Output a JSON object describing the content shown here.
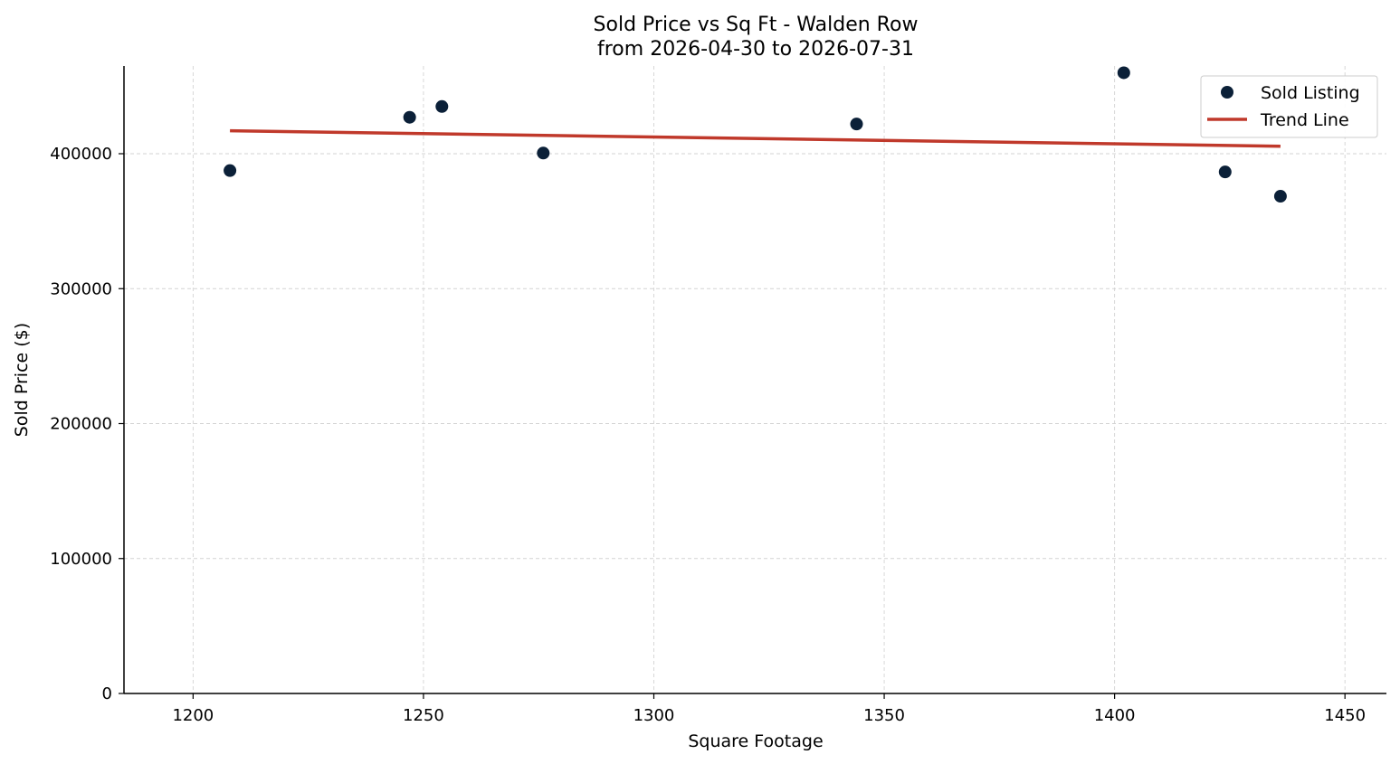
{
  "chart_data": {
    "type": "scatter",
    "title": "Sold Price vs Sq Ft - Walden Row",
    "subtitle": "from 2026-04-30 to 2026-07-31",
    "xlabel": "Square Footage",
    "ylabel": "Sold Price ($)",
    "xlim": [
      1185,
      1459
    ],
    "ylim": [
      0,
      465000
    ],
    "xticks": [
      1200,
      1250,
      1300,
      1350,
      1400,
      1450
    ],
    "yticks": [
      0,
      100000,
      200000,
      300000,
      400000
    ],
    "grid": true,
    "legend_position": "top-right",
    "series": [
      {
        "name": "Sold Listing",
        "kind": "scatter",
        "color": "#0b2038",
        "points": [
          {
            "x": 1208,
            "y": 387500
          },
          {
            "x": 1247,
            "y": 427000
          },
          {
            "x": 1254,
            "y": 435000
          },
          {
            "x": 1276,
            "y": 400500
          },
          {
            "x": 1344,
            "y": 422000
          },
          {
            "x": 1402,
            "y": 460000
          },
          {
            "x": 1424,
            "y": 386500
          },
          {
            "x": 1436,
            "y": 368500
          }
        ]
      },
      {
        "name": "Trend Line",
        "kind": "line",
        "color": "#c0392b",
        "points": [
          {
            "x": 1208,
            "y": 417000
          },
          {
            "x": 1436,
            "y": 405500
          }
        ]
      }
    ]
  }
}
